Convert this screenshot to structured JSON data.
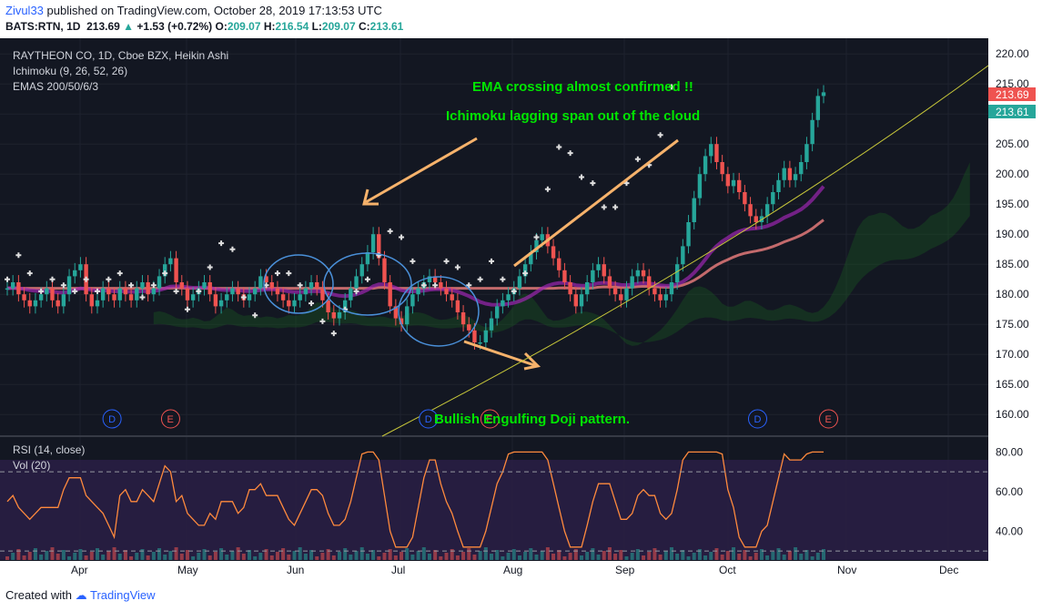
{
  "header": {
    "publisher": "Zivul33",
    "published_text": "published on TradingView.com, October 28, 2019 17:13:53 UTC",
    "symbol": "BATS:RTN, 1D",
    "last": "213.69",
    "change": "+1.53 (+0.72%)",
    "o_label": "O:",
    "o": "209.07",
    "h_label": "H:",
    "h": "216.54",
    "l_label": "L:",
    "l": "209.07",
    "c_label": "C:",
    "c": "213.61"
  },
  "legend": {
    "title": "RAYTHEON CO, 1D, Cboe BZX, Heikin Ashi",
    "ichimoku": "Ichimoku (9, 26, 52, 26)",
    "emas": "EMAS 200/50/6/3",
    "rsi": "RSI (14, close)",
    "vol": "Vol (20)"
  },
  "annotations": {
    "ema_text": "EMA crossing almost confirmed !!",
    "ichimoku_text": "Ichimoku lagging span out of the cloud",
    "engulfing_text": "Bullish Engulfing Doji pattern."
  },
  "price_labels": {
    "upper": "213.69",
    "lower": "213.61"
  },
  "footer": {
    "created": "Created with",
    "brand": "TradingView"
  },
  "colors": {
    "bg": "#131722",
    "up": "#26a69a",
    "down": "#ef5350",
    "annotation_green": "#00e600",
    "arrow": "#f6b26b",
    "ema200": "#f08080",
    "ema50": "#9c27b0",
    "ellipse": "#4a90d9"
  },
  "chart_data": {
    "type": "candlestick",
    "price_axis": {
      "ticks": [
        160,
        165,
        170,
        175,
        180,
        185,
        190,
        195,
        200,
        205,
        210,
        215,
        220
      ],
      "range": [
        157,
        222
      ]
    },
    "rsi_axis": {
      "ticks": [
        40,
        60,
        80
      ],
      "levels": [
        30,
        70
      ]
    },
    "time_labels": [
      "Apr",
      "May",
      "Jun",
      "Jul",
      "Aug",
      "Sep",
      "Oct",
      "Nov",
      "Dec"
    ],
    "event_markers": [
      {
        "label": "D",
        "month_pos": 0.3
      },
      {
        "label": "E",
        "month_pos": 0.85
      },
      {
        "label": "D",
        "month_pos": 3.25
      },
      {
        "label": "E",
        "month_pos": 3.8
      },
      {
        "label": "D",
        "month_pos": 6.25
      },
      {
        "label": "E",
        "month_pos": 6.85
      }
    ],
    "closes": [
      181,
      182,
      180,
      179,
      178,
      179,
      180,
      181,
      179,
      178,
      180,
      183,
      184,
      185,
      180,
      178,
      179,
      181,
      180,
      179,
      181,
      180,
      179,
      181,
      182,
      180,
      181,
      183,
      185,
      186,
      182,
      181,
      179,
      180,
      181,
      182,
      180,
      178,
      179,
      180,
      181,
      180,
      179,
      180,
      181,
      183,
      182,
      181,
      180,
      179,
      178,
      179,
      180,
      181,
      182,
      181,
      179,
      177,
      176,
      177,
      179,
      181,
      183,
      185,
      187,
      190,
      186,
      182,
      178,
      176,
      175,
      178,
      180,
      181,
      182,
      183,
      182,
      181,
      180,
      179,
      177,
      175,
      174,
      172,
      172,
      174,
      176,
      178,
      179,
      180,
      181,
      183,
      185,
      187,
      189,
      190,
      188,
      186,
      184,
      182,
      180,
      178,
      180,
      182,
      184,
      185,
      183,
      181,
      180,
      179,
      181,
      183,
      184,
      183,
      181,
      180,
      179,
      180,
      182,
      185,
      188,
      192,
      196,
      200,
      203,
      205,
      202,
      200,
      198,
      199,
      197,
      195,
      193,
      192,
      193,
      195,
      197,
      199,
      201,
      199,
      200,
      202,
      205,
      209,
      213,
      213.61
    ]
  }
}
